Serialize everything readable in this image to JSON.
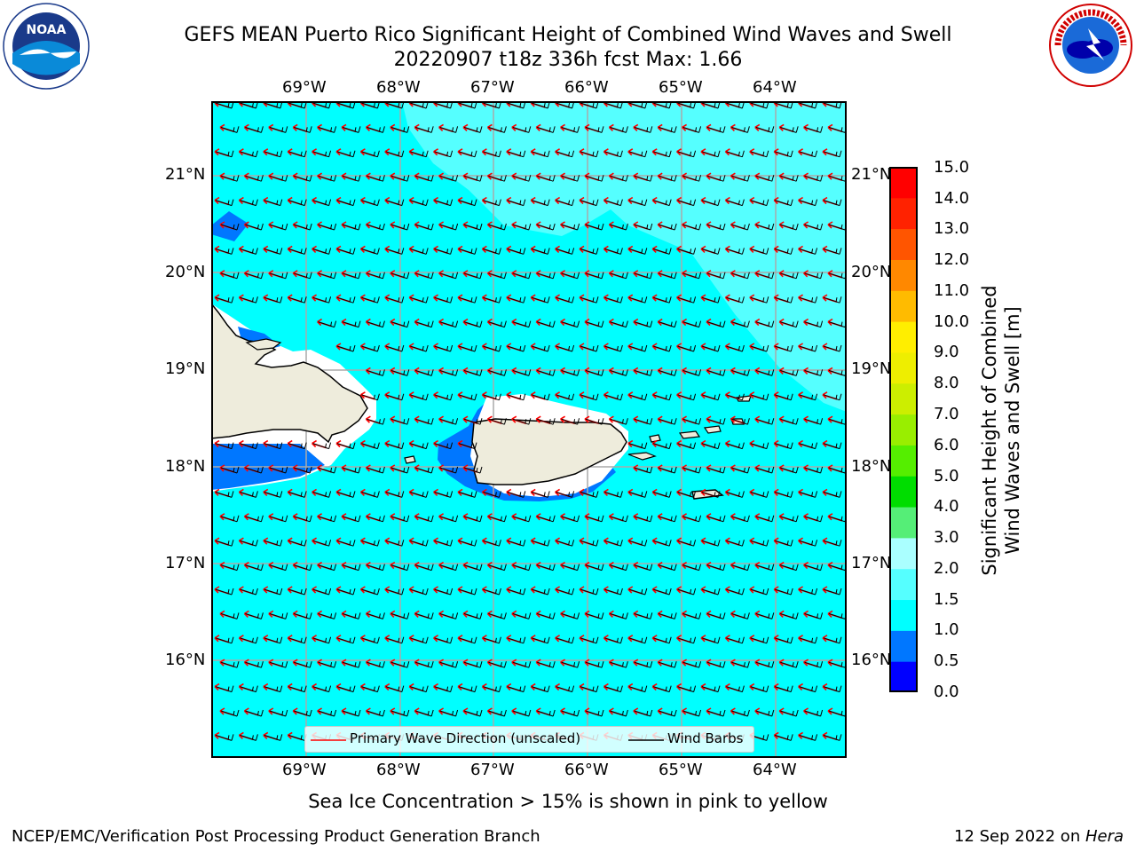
{
  "header": {
    "title_line1": "GEFS MEAN Puerto Rico Significant Height of Combined Wind Waves and Swell",
    "title_line2": "20220907 t18z 336h fcst   Max: 1.66"
  },
  "logos": {
    "left": {
      "name": "noaa-logo",
      "text": "NOAA"
    },
    "right": {
      "name": "nws-logo",
      "text": "NATIONAL WEATHER SERVICE"
    }
  },
  "map": {
    "lon_labels": [
      "69°W",
      "68°W",
      "67°W",
      "66°W",
      "65°W",
      "64°W"
    ],
    "lat_labels": [
      "21°N",
      "20°N",
      "19°N",
      "18°N",
      "17°N",
      "16°N"
    ],
    "extent": {
      "lon": [
        -70.0,
        -63.25
      ],
      "lat": [
        15.0,
        21.75
      ]
    },
    "colors": {
      "land": "#eeecdc",
      "ocean_1_1_5": "#00ffff",
      "ocean_1_5_2": "#55ffff",
      "ocean_0_5_1": "#0077ff",
      "wave_arrow": "#ff0000",
      "barb": "#000000"
    }
  },
  "legend": {
    "wave_direction": "Primary Wave Direction (unscaled)",
    "wind_barbs": "Wind Barbs"
  },
  "colorbar": {
    "label_line1": "Significant Height of Combined",
    "label_line2": "Wind Waves and Swell [m]",
    "ticks": [
      "15.0",
      "14.0",
      "13.0",
      "12.0",
      "11.0",
      "10.0",
      "9.0",
      "8.0",
      "7.0",
      "6.0",
      "5.0",
      "4.0",
      "3.0",
      "2.0",
      "1.5",
      "1.0",
      "0.5",
      "0.0"
    ],
    "colors": [
      "#0000ff",
      "#0077ff",
      "#00ffff",
      "#55ffff",
      "#aaffff",
      "#55ee77",
      "#00dd00",
      "#55ee00",
      "#99ee00",
      "#ccee00",
      "#eeee00",
      "#ffee00",
      "#ffbb00",
      "#ff8800",
      "#ff5500",
      "#ff2200",
      "#ff0000"
    ]
  },
  "notes": {
    "sea_ice": "Sea Ice Concentration > 15% is shown in pink to yellow"
  },
  "footer": {
    "left": "NCEP/EMC/Verification Post Processing Product Generation Branch",
    "right_date": "12 Sep 2022 on ",
    "right_host": "Hera"
  }
}
